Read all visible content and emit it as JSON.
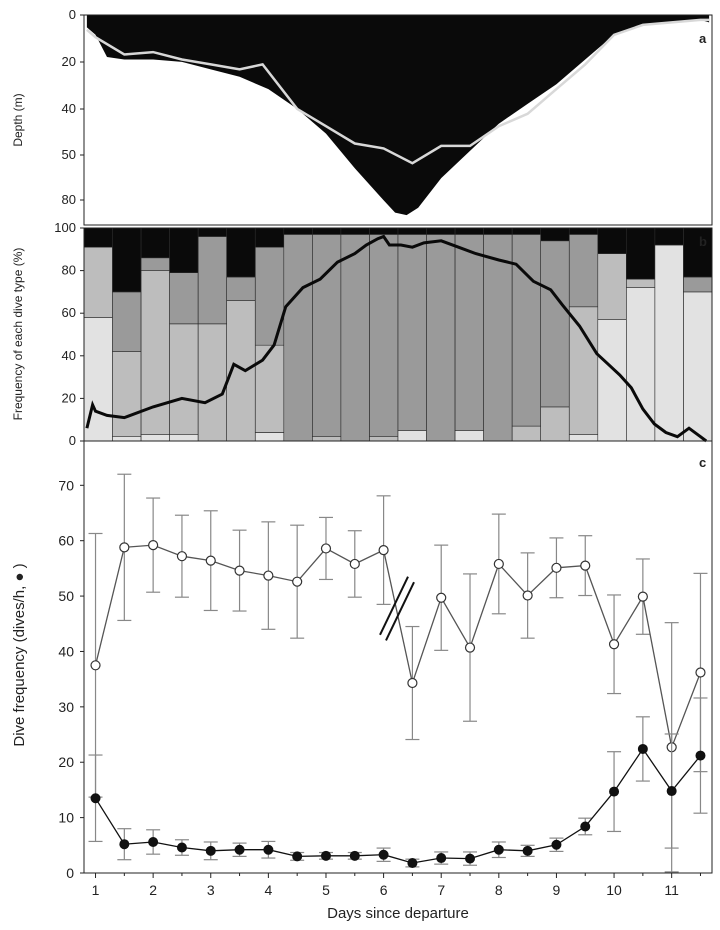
{
  "panel_letters": {
    "a": "a",
    "b": "b",
    "c": "c"
  },
  "colors": {
    "depth_fill": "#0a0a0a",
    "depth_line": "#d8d8d8",
    "stack_dark": "#0a0a0a",
    "stack_mid_dark": "#6b6b6b",
    "stack_mid": "#9a9a9a",
    "stack_light": "#bdbdbd",
    "stack_very_light": "#e2e2e2",
    "frequency_line": "#0a0a0a",
    "open_series": "#555555",
    "filled_series": "#111111",
    "errorbar": "#888888"
  },
  "chart_data": [
    {
      "panel": "a",
      "type": "area",
      "ylabel": "Depth (m)",
      "xlim": [
        0.8,
        11.7
      ],
      "ylim": [
        85,
        0
      ],
      "yticks": [
        0,
        20,
        40,
        50,
        60,
        80
      ],
      "ytick_labels": [
        "0",
        "20",
        "40",
        "50",
        "60",
        "80"
      ],
      "axis_tick_label_map_note": "",
      "series": [
        {
          "style": "filled black area (max dive depth)",
          "x": [
            0.85,
            1.0,
            1.2,
            1.5,
            2.0,
            2.5,
            3.0,
            3.5,
            4.0,
            4.5,
            5.0,
            5.5,
            6.0,
            6.2,
            6.4,
            6.6,
            7.0,
            7.5,
            8.0,
            8.5,
            9.0,
            9.5,
            10.0,
            10.5,
            11.0,
            11.5,
            11.65
          ],
          "y": [
            5,
            8,
            17,
            18,
            18,
            19,
            22,
            25,
            30,
            38,
            48,
            62,
            75,
            80,
            81,
            78,
            66,
            55,
            44,
            36,
            28,
            18,
            8,
            4,
            3,
            2,
            3
          ]
        },
        {
          "style": "light grey line (mean dive depth)",
          "x": [
            0.85,
            1.0,
            1.5,
            2.0,
            2.5,
            3.0,
            3.5,
            3.9,
            4.5,
            5.0,
            5.5,
            6.0,
            6.5,
            7.0,
            7.5,
            8.0,
            8.5,
            9.0,
            9.5,
            10.0,
            10.5,
            11.0,
            11.5,
            11.65
          ],
          "y": [
            6,
            9,
            16,
            15,
            18,
            20,
            22,
            20,
            38,
            45,
            52,
            54,
            60,
            53,
            53,
            45,
            40,
            30,
            20,
            8,
            4,
            3,
            2,
            2
          ]
        }
      ]
    },
    {
      "panel": "b",
      "type": "bar",
      "ylabel": "Frequency of each dive type (%)",
      "ylim": [
        0,
        100
      ],
      "yticks": [
        0,
        20,
        40,
        60,
        80,
        100
      ],
      "ytick_labels": [
        "0",
        "20",
        "40",
        "60",
        "80",
        "100"
      ],
      "categories": [
        "1",
        "1.5",
        "2",
        "2.5",
        "3",
        "3.5",
        "4",
        "4.5",
        "5",
        "5.5",
        "6",
        "6.5",
        "7",
        "7.5",
        "8",
        "8.5",
        "9",
        "9.5",
        "10",
        "10.5",
        "11",
        "11.5"
      ],
      "stacks_note": "",
      "series": [
        {
          "name": "",
          "color_key": "stack_very_light",
          "values": [
            58,
            2,
            3,
            3,
            0,
            0,
            4,
            0,
            0,
            0,
            0,
            5,
            0,
            5,
            0,
            0,
            0,
            3,
            57,
            72,
            92,
            70
          ]
        },
        {
          "name": "",
          "color_key": "stack_light",
          "values": [
            33,
            40,
            77,
            52,
            55,
            66,
            41,
            0,
            2,
            0,
            2,
            0,
            0,
            0,
            0,
            7,
            16,
            60,
            31,
            4,
            0,
            0
          ]
        },
        {
          "name": "",
          "color_key": "stack_mid",
          "values": [
            0,
            28,
            6,
            24,
            41,
            11,
            46,
            97,
            95,
            97,
            95,
            92,
            97,
            92,
            97,
            90,
            78,
            34,
            0,
            0,
            0,
            7
          ]
        },
        {
          "name": "",
          "color_key": "stack_dark",
          "values": [
            9,
            30,
            14,
            21,
            4,
            23,
            9,
            3,
            3,
            3,
            3,
            3,
            3,
            3,
            3,
            3,
            6,
            3,
            12,
            24,
            8,
            23
          ]
        }
      ],
      "line": {
        "x": [
          0.85,
          0.95,
          1.0,
          1.2,
          1.5,
          2.0,
          2.5,
          2.9,
          3.2,
          3.4,
          3.6,
          3.9,
          4.1,
          4.3,
          4.6,
          4.9,
          5.2,
          5.5,
          5.7,
          5.9,
          6.0,
          6.1,
          6.3,
          6.5,
          6.7,
          7.0,
          7.3,
          7.6,
          8.0,
          8.3,
          8.6,
          8.9,
          9.1,
          9.4,
          9.7,
          9.9,
          10.1,
          10.3,
          10.5,
          10.7,
          10.9,
          11.1,
          11.3,
          11.5,
          11.6
        ],
        "y": [
          6,
          17,
          14,
          12,
          11,
          16,
          20,
          18,
          22,
          36,
          33,
          38,
          45,
          63,
          72,
          76,
          84,
          88,
          92,
          95,
          96,
          92,
          92,
          91,
          93,
          94,
          91,
          88,
          85,
          83,
          75,
          71,
          64,
          54,
          41,
          36,
          31,
          25,
          15,
          8,
          4,
          2,
          6,
          2,
          0
        ]
      }
    },
    {
      "panel": "c",
      "type": "line",
      "xlabel": "Days since departure",
      "ylabel": "Dive frequency (dives/h, ● )",
      "xlim": [
        0.8,
        11.7
      ],
      "ylim": [
        0,
        78
      ],
      "xticks": [
        1,
        2,
        3,
        4,
        5,
        6,
        7,
        8,
        9,
        10,
        11
      ],
      "xtick_labels": [
        "1",
        "2",
        "3",
        "4",
        "5",
        "6",
        "7",
        "8",
        "9",
        "10",
        "11"
      ],
      "yticks": [
        0,
        10,
        20,
        30,
        40,
        50,
        60,
        70
      ],
      "ytick_labels": [
        "0",
        "10",
        "20",
        "30",
        "40",
        "50",
        "60",
        "70"
      ],
      "axis_break_at_x": 6.25,
      "series": [
        {
          "marker": "open-circle",
          "x": [
            1,
            1.5,
            2,
            2.5,
            3,
            3.5,
            4,
            4.5,
            5,
            5.5,
            6,
            6.5,
            7,
            7.5,
            8,
            8.5,
            9,
            9.5,
            10,
            10.5,
            11,
            11.5
          ],
          "y": [
            37.5,
            58.8,
            59.2,
            57.2,
            56.4,
            54.6,
            53.7,
            52.6,
            58.6,
            55.8,
            58.3,
            34.3,
            49.7,
            40.7,
            55.8,
            50.1,
            55.1,
            55.5,
            41.3,
            49.9,
            22.7,
            36.2
          ],
          "err": [
            23.8,
            13.2,
            8.5,
            7.4,
            9.0,
            7.3,
            9.7,
            10.2,
            5.6,
            6.0,
            9.8,
            10.2,
            9.5,
            13.3,
            9.0,
            7.7,
            5.4,
            5.4,
            8.9,
            6.8,
            22.5,
            17.9
          ]
        },
        {
          "marker": "filled-circle",
          "x": [
            1,
            1.5,
            2,
            2.5,
            3,
            3.5,
            4,
            4.5,
            5,
            5.5,
            6,
            6.5,
            7,
            7.5,
            8,
            8.5,
            9,
            9.5,
            10,
            10.5,
            11,
            11.5
          ],
          "y": [
            13.5,
            5.2,
            5.6,
            4.6,
            4.0,
            4.2,
            4.2,
            3.0,
            3.1,
            3.1,
            3.3,
            1.8,
            2.7,
            2.6,
            4.2,
            4.0,
            5.1,
            8.4,
            14.7,
            22.4,
            14.8,
            21.2
          ],
          "err": [
            7.8,
            2.8,
            2.2,
            1.4,
            1.6,
            1.2,
            1.5,
            0.7,
            0.6,
            0.6,
            1.2,
            0.7,
            1.1,
            1.2,
            1.4,
            1.0,
            1.2,
            1.5,
            7.2,
            5.8,
            10.3,
            10.4
          ]
        }
      ]
    }
  ]
}
